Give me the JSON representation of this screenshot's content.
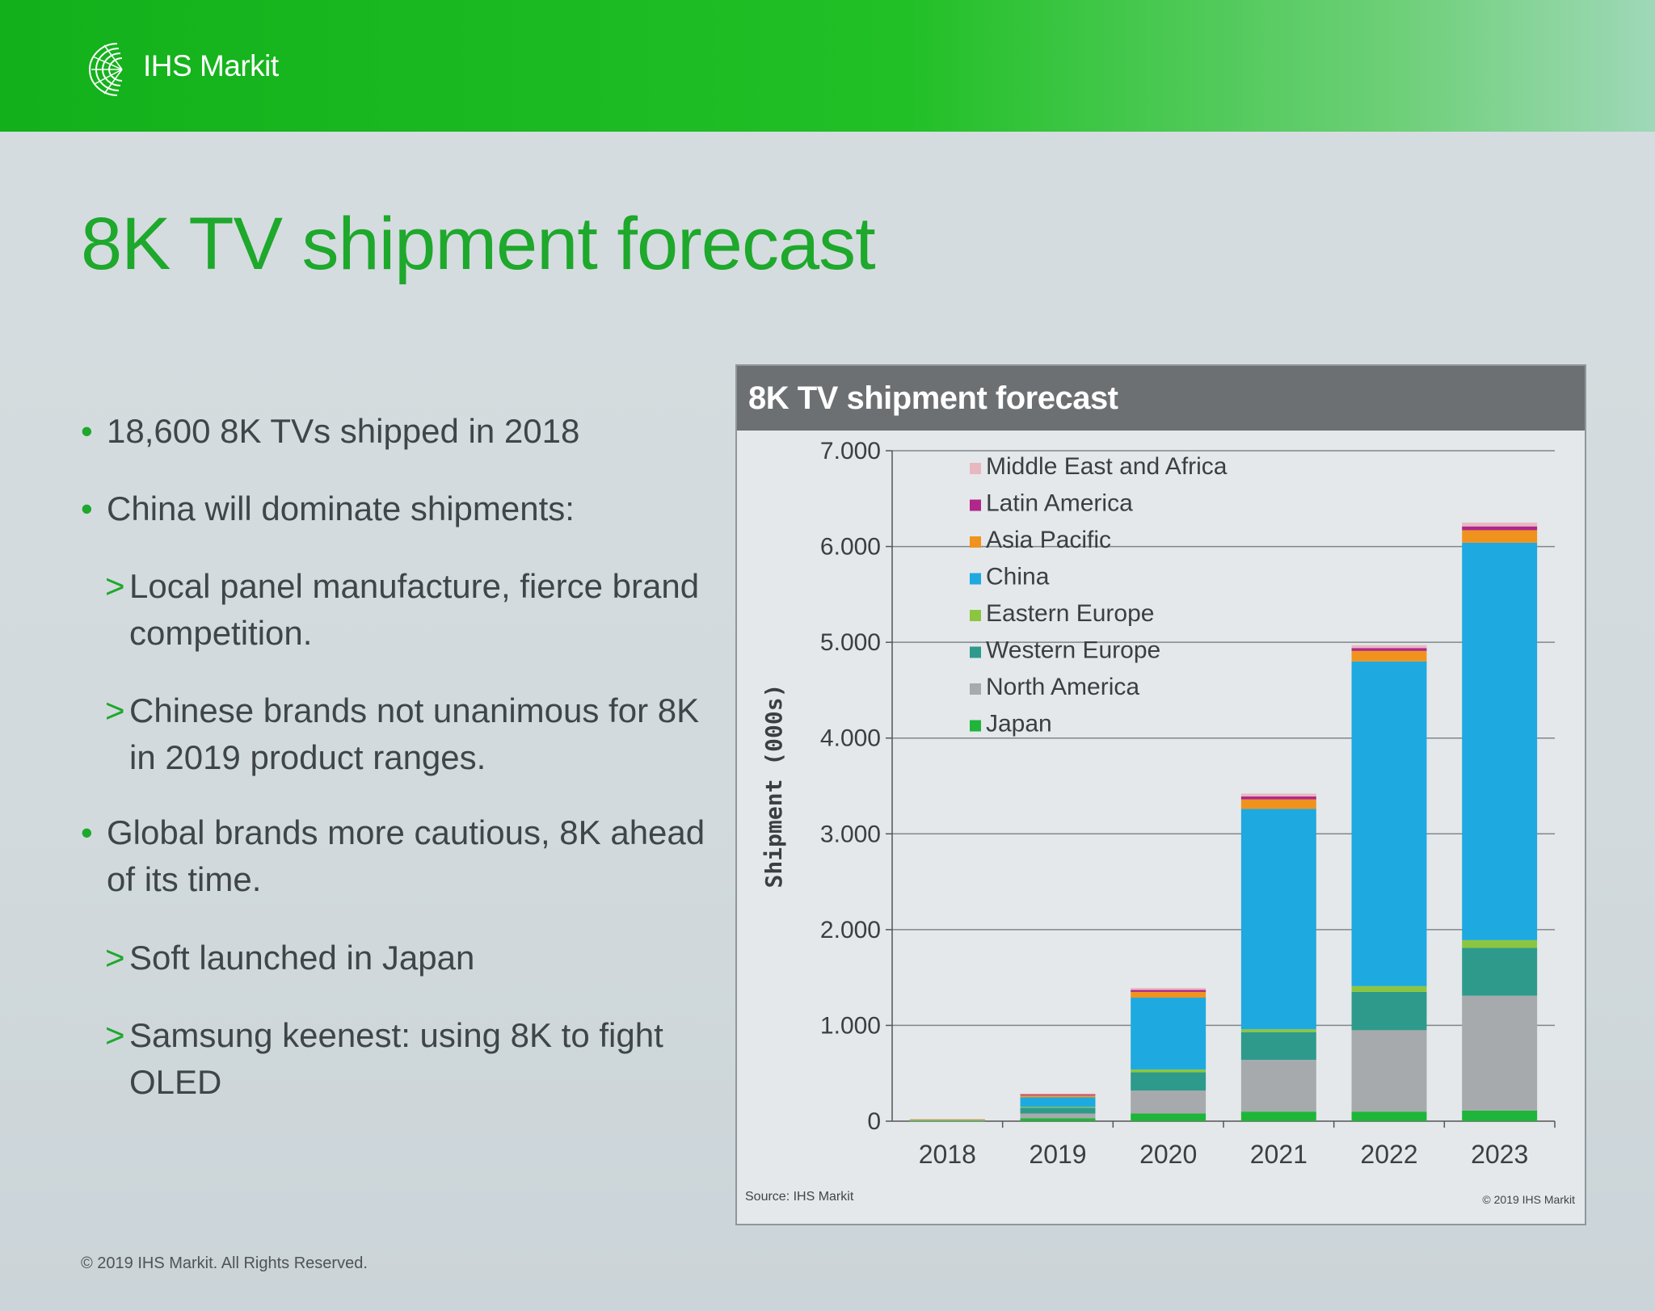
{
  "header": {
    "logo_text": "IHS Markit"
  },
  "slide": {
    "title": "8K TV shipment forecast",
    "bullets": [
      {
        "level": 1,
        "text": "18,600 8K TVs shipped in 2018"
      },
      {
        "level": 1,
        "text": "China will dominate shipments:"
      },
      {
        "level": 2,
        "text": "Local panel manufacture, fierce brand competition."
      },
      {
        "level": 2,
        "text": "Chinese brands not unanimous for 8K in 2019 product ranges."
      },
      {
        "level": 1,
        "text": "Global brands more cautious, 8K ahead of its time."
      },
      {
        "level": 2,
        "text": "Soft launched in Japan"
      },
      {
        "level": 2,
        "text": "Samsung keenest: using 8K to fight OLED"
      }
    ],
    "footer": "© 2019 IHS Markit. All Rights Reserved."
  },
  "chart_data": {
    "type": "bar",
    "stacked": true,
    "title": "8K TV shipment forecast",
    "xlabel": "",
    "ylabel": "Shipment (000s)",
    "ylim": [
      0,
      7000
    ],
    "yticks": [
      0,
      1000,
      2000,
      3000,
      4000,
      5000,
      6000,
      7000
    ],
    "ytick_labels": [
      "0",
      "1.000",
      "2.000",
      "3.000",
      "4.000",
      "5.000",
      "6.000",
      "7.000"
    ],
    "categories": [
      "2018",
      "2019",
      "2020",
      "2021",
      "2022",
      "2023"
    ],
    "series": [
      {
        "name": "Japan",
        "color": "#1fb53a",
        "values": [
          5,
          30,
          80,
          100,
          100,
          110
        ]
      },
      {
        "name": "North America",
        "color": "#a7aaad",
        "values": [
          5,
          50,
          240,
          540,
          850,
          1200
        ]
      },
      {
        "name": "Western Europe",
        "color": "#2e9a8c",
        "values": [
          5,
          60,
          190,
          290,
          400,
          500
        ]
      },
      {
        "name": "Eastern Europe",
        "color": "#8cc63f",
        "values": [
          1,
          10,
          30,
          30,
          60,
          80
        ]
      },
      {
        "name": "China",
        "color": "#1ea9e1",
        "values": [
          2,
          100,
          750,
          2300,
          3390,
          4150
        ]
      },
      {
        "name": "Asia Pacific",
        "color": "#f0931e",
        "values": [
          1,
          20,
          60,
          100,
          110,
          130
        ]
      },
      {
        "name": "Latin America",
        "color": "#b0268a",
        "values": [
          0,
          10,
          20,
          30,
          30,
          40
        ]
      },
      {
        "name": "Middle East and Africa",
        "color": "#e7b8c0",
        "values": [
          0,
          10,
          20,
          30,
          30,
          40
        ]
      }
    ],
    "legend_order": [
      "Middle East and Africa",
      "Latin America",
      "Asia Pacific",
      "China",
      "Eastern Europe",
      "Western Europe",
      "North America",
      "Japan"
    ],
    "legend_position": "top-left",
    "source": "Source: IHS Markit",
    "copyright": "© 2019 IHS Markit"
  }
}
